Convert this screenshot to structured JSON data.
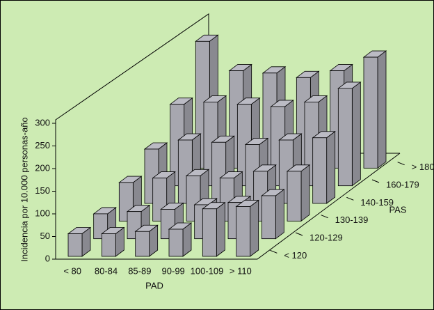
{
  "chart_data": {
    "type": "bar3d",
    "x_label": "PAD",
    "y_label": "Incidencia por 10.000 personas-año",
    "z_label": "PAS",
    "categories": [
      "< 80",
      "80-84",
      "85-89",
      "90-99",
      "100-109",
      "> 110"
    ],
    "series": [
      {
        "name": "< 120",
        "values": [
          50,
          50,
          55,
          60,
          105,
          110
        ]
      },
      {
        "name": "120-129",
        "values": [
          55,
          60,
          65,
          75,
          80,
          95
        ]
      },
      {
        "name": "130-139",
        "values": [
          85,
          95,
          100,
          95,
          110,
          110
        ]
      },
      {
        "name": "140-159",
        "values": [
          120,
          140,
          135,
          130,
          140,
          145
        ]
      },
      {
        "name": "160-179",
        "values": [
          180,
          185,
          180,
          175,
          185,
          215
        ]
      },
      {
        "name": "> 180",
        "values": [
          280,
          215,
          210,
          200,
          215,
          245
        ]
      }
    ],
    "color": "#a7a7af",
    "background": "#cdebb3",
    "ylim": [
      0,
      300
    ],
    "yticks": [
      0,
      50,
      100,
      150,
      200,
      250,
      300
    ]
  }
}
